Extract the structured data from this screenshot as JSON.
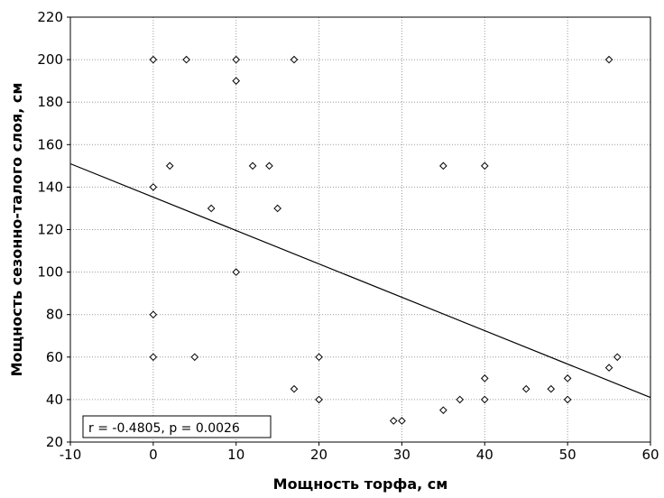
{
  "chart_data": {
    "type": "scatter",
    "title": "",
    "xlabel": "Мощность торфа, см",
    "ylabel": "Мощность сезонно-талого слоя, см",
    "xlim": [
      -10,
      60
    ],
    "ylim": [
      20,
      220
    ],
    "xticks": [
      -10,
      0,
      10,
      20,
      30,
      40,
      50,
      60
    ],
    "yticks": [
      20,
      40,
      60,
      80,
      100,
      120,
      140,
      160,
      180,
      200,
      220
    ],
    "grid": true,
    "points": [
      {
        "x": 0,
        "y": 200
      },
      {
        "x": 4,
        "y": 200
      },
      {
        "x": 10,
        "y": 200
      },
      {
        "x": 17,
        "y": 200
      },
      {
        "x": 55,
        "y": 200
      },
      {
        "x": 10,
        "y": 190
      },
      {
        "x": 2,
        "y": 150
      },
      {
        "x": 12,
        "y": 150
      },
      {
        "x": 14,
        "y": 150
      },
      {
        "x": 35,
        "y": 150
      },
      {
        "x": 40,
        "y": 150
      },
      {
        "x": 0,
        "y": 140
      },
      {
        "x": 7,
        "y": 130
      },
      {
        "x": 15,
        "y": 130
      },
      {
        "x": 10,
        "y": 100
      },
      {
        "x": 0,
        "y": 80
      },
      {
        "x": 0,
        "y": 60
      },
      {
        "x": 5,
        "y": 60
      },
      {
        "x": 20,
        "y": 60
      },
      {
        "x": 56,
        "y": 60
      },
      {
        "x": 55,
        "y": 55
      },
      {
        "x": 40,
        "y": 50
      },
      {
        "x": 50,
        "y": 50
      },
      {
        "x": 17,
        "y": 45
      },
      {
        "x": 45,
        "y": 45
      },
      {
        "x": 48,
        "y": 45
      },
      {
        "x": 20,
        "y": 40
      },
      {
        "x": 37,
        "y": 40
      },
      {
        "x": 40,
        "y": 40
      },
      {
        "x": 50,
        "y": 40
      },
      {
        "x": 35,
        "y": 35
      },
      {
        "x": 29,
        "y": 30
      },
      {
        "x": 30,
        "y": 30
      }
    ],
    "regression_line": {
      "x": [
        -10,
        60
      ],
      "y": [
        151,
        41
      ]
    },
    "annotation": "r = -0.4805, p = 0.0026",
    "annotation_position": "bottom-left"
  }
}
